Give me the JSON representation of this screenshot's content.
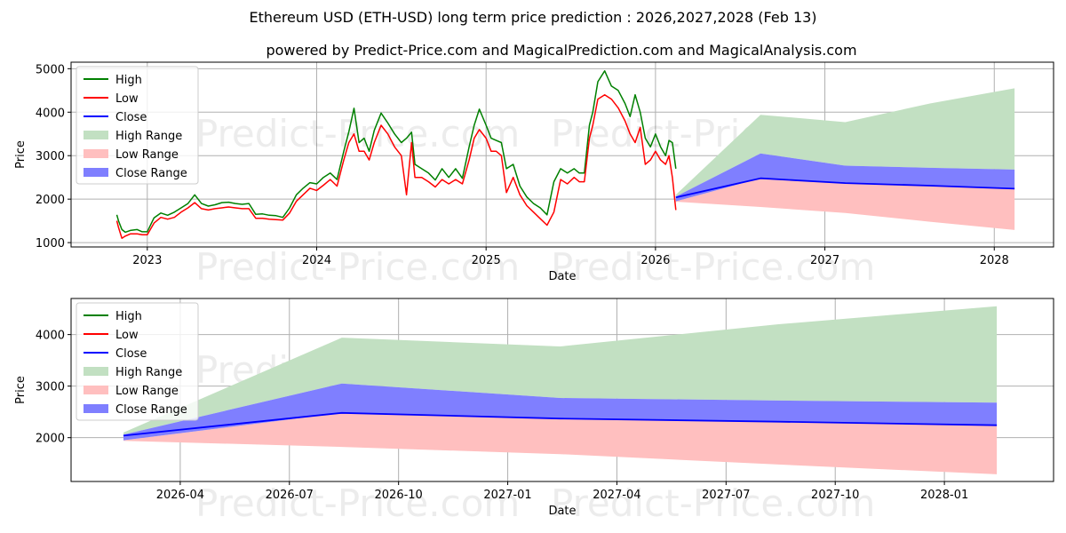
{
  "title_line1": "Ethereum USD (ETH-USD) long term price prediction : 2026,2027,2028 (Feb 13)",
  "title_line2": "powered by Predict-Price.com and MagicalPrediction.com and MagicalAnalysis.com",
  "watermark": "Predict-Price.com",
  "colors": {
    "high": "#008000",
    "low": "#ff0000",
    "close": "#0000ff",
    "high_range": "#c2e0c2",
    "low_range": "#ffbfbf",
    "close_range": "#7f7fff"
  },
  "chart_data": [
    {
      "type": "line",
      "name": "history-and-forecast",
      "xlabel": "Date",
      "ylabel": "Price",
      "xlim": [
        2022.55,
        2028.35
      ],
      "ylim": [
        900,
        5150
      ],
      "x_ticks": [
        {
          "value": 2023.0,
          "label": "2023"
        },
        {
          "value": 2024.0,
          "label": "2024"
        },
        {
          "value": 2025.0,
          "label": "2025"
        },
        {
          "value": 2026.0,
          "label": "2026"
        },
        {
          "value": 2027.0,
          "label": "2027"
        },
        {
          "value": 2028.0,
          "label": "2028"
        }
      ],
      "y_ticks": [
        1000,
        2000,
        3000,
        4000,
        5000
      ],
      "history": {
        "dates": [
          2022.82,
          2022.83,
          2022.85,
          2022.87,
          2022.9,
          2022.94,
          2022.97,
          2023.0,
          2023.04,
          2023.08,
          2023.12,
          2023.16,
          2023.2,
          2023.24,
          2023.28,
          2023.32,
          2023.36,
          2023.4,
          2023.44,
          2023.48,
          2023.52,
          2023.56,
          2023.6,
          2023.64,
          2023.68,
          2023.72,
          2023.76,
          2023.8,
          2023.84,
          2023.88,
          2023.92,
          2023.96,
          2024.0,
          2024.04,
          2024.08,
          2024.12,
          2024.16,
          2024.19,
          2024.22,
          2024.25,
          2024.28,
          2024.31,
          2024.34,
          2024.38,
          2024.42,
          2024.46,
          2024.5,
          2024.53,
          2024.56,
          2024.58,
          2024.62,
          2024.66,
          2024.7,
          2024.74,
          2024.78,
          2024.82,
          2024.86,
          2024.9,
          2024.93,
          2024.96,
          2025.0,
          2025.03,
          2025.06,
          2025.09,
          2025.12,
          2025.16,
          2025.2,
          2025.24,
          2025.28,
          2025.32,
          2025.36,
          2025.4,
          2025.44,
          2025.48,
          2025.52,
          2025.55,
          2025.58,
          2025.61,
          2025.63,
          2025.66,
          2025.7,
          2025.74,
          2025.78,
          2025.82,
          2025.85,
          2025.88,
          2025.91,
          2025.94,
          2025.97,
          2026.0,
          2026.03,
          2026.06,
          2026.08,
          2026.1,
          2026.12
        ],
        "high": [
          1640,
          1500,
          1300,
          1240,
          1280,
          1300,
          1250,
          1250,
          1570,
          1680,
          1630,
          1700,
          1800,
          1900,
          2100,
          1900,
          1840,
          1870,
          1920,
          1930,
          1900,
          1880,
          1900,
          1650,
          1660,
          1630,
          1620,
          1580,
          1800,
          2100,
          2250,
          2380,
          2350,
          2500,
          2600,
          2450,
          3100,
          3550,
          4090,
          3300,
          3400,
          3100,
          3580,
          3980,
          3750,
          3500,
          3300,
          3400,
          3540,
          2800,
          2700,
          2600,
          2440,
          2700,
          2500,
          2700,
          2480,
          3200,
          3700,
          4070,
          3700,
          3400,
          3350,
          3300,
          2700,
          2800,
          2300,
          2050,
          1900,
          1800,
          1640,
          2400,
          2700,
          2600,
          2700,
          2600,
          2600,
          3700,
          4000,
          4700,
          4950,
          4600,
          4500,
          4200,
          3900,
          4400,
          4000,
          3400,
          3200,
          3500,
          3200,
          3000,
          3350,
          3300,
          2700
        ],
        "low": [
          1500,
          1350,
          1100,
          1150,
          1200,
          1200,
          1180,
          1180,
          1450,
          1580,
          1540,
          1580,
          1700,
          1800,
          1920,
          1780,
          1750,
          1780,
          1800,
          1820,
          1800,
          1780,
          1780,
          1560,
          1560,
          1540,
          1530,
          1520,
          1680,
          1950,
          2100,
          2250,
          2200,
          2320,
          2450,
          2300,
          2900,
          3300,
          3500,
          3100,
          3100,
          2900,
          3300,
          3700,
          3500,
          3200,
          3000,
          2100,
          3300,
          2500,
          2500,
          2400,
          2280,
          2450,
          2350,
          2450,
          2350,
          2900,
          3400,
          3600,
          3400,
          3100,
          3100,
          3000,
          2150,
          2500,
          2100,
          1850,
          1700,
          1550,
          1400,
          1700,
          2450,
          2350,
          2500,
          2400,
          2400,
          3400,
          3700,
          4300,
          4400,
          4300,
          4100,
          3800,
          3500,
          3300,
          3650,
          2800,
          2900,
          3100,
          2900,
          2800,
          3000,
          2500,
          1750
        ]
      },
      "forecast": {
        "dates": [
          2026.12,
          2026.62,
          2027.12,
          2027.62,
          2028.12
        ],
        "close": [
          2040,
          2480,
          2370,
          2310,
          2240
        ],
        "close_range_high": [
          2060,
          3050,
          2770,
          2720,
          2680
        ],
        "close_range_low": [
          1950,
          2480,
          2370,
          2310,
          2240
        ],
        "high_range_high": [
          2100,
          3940,
          3770,
          4200,
          4550
        ],
        "high_range_low": [
          2060,
          3050,
          2770,
          2720,
          2680
        ],
        "low_range_high": [
          1950,
          2480,
          2370,
          2310,
          2240
        ],
        "low_range_low": [
          1940,
          1820,
          1680,
          1480,
          1290
        ]
      },
      "legend": [
        "High",
        "Low",
        "Close",
        "High Range",
        "Low Range",
        "Close Range"
      ],
      "legend_position": "top-left",
      "grid": true
    },
    {
      "type": "area",
      "name": "forecast-zoom",
      "xlabel": "Date",
      "ylabel": "Price",
      "xlim": [
        2026.0,
        2028.25
      ],
      "ylim": [
        1150,
        4700
      ],
      "x_ticks": [
        {
          "value": 2026.25,
          "label": "2026-04"
        },
        {
          "value": 2026.5,
          "label": "2026-07"
        },
        {
          "value": 2026.75,
          "label": "2026-10"
        },
        {
          "value": 2027.0,
          "label": "2027-01"
        },
        {
          "value": 2027.25,
          "label": "2027-04"
        },
        {
          "value": 2027.5,
          "label": "2027-07"
        },
        {
          "value": 2027.75,
          "label": "2027-10"
        },
        {
          "value": 2028.0,
          "label": "2028-01"
        }
      ],
      "y_ticks": [
        2000,
        3000,
        4000
      ],
      "legend": [
        "High",
        "Low",
        "Close",
        "High Range",
        "Low Range",
        "Close Range"
      ],
      "legend_position": "top-left",
      "grid": true
    }
  ]
}
